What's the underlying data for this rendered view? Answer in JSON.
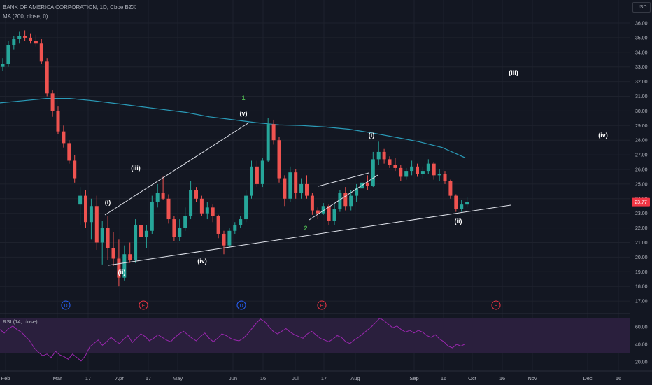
{
  "header": {
    "symbol": "BANK OF AMERICA CORPORATION, 1D, Cboe BZX",
    "indicator": "MA (200, close, 0)",
    "currency": "USD"
  },
  "rsi": {
    "legend": "RSI (14, close)",
    "ticks": [
      "60.00",
      "40.00",
      "20.00"
    ],
    "current": 40.5,
    "values": [
      57,
      53,
      58,
      61,
      57,
      54,
      49,
      44,
      36,
      31,
      27,
      29,
      25,
      32,
      28,
      26,
      23,
      29,
      25,
      21,
      27,
      37,
      41,
      45,
      39,
      43,
      48,
      44,
      41,
      46,
      50,
      42,
      47,
      52,
      49,
      44,
      47,
      51,
      48,
      45,
      43,
      48,
      52,
      55,
      51,
      47,
      44,
      49,
      53,
      47,
      43,
      47,
      52,
      50,
      47,
      45,
      44,
      47,
      52,
      58,
      64,
      69,
      66,
      60,
      55,
      52,
      55,
      58,
      54,
      51,
      49,
      47,
      52,
      55,
      51,
      47,
      45,
      43,
      46,
      50,
      48,
      43,
      41,
      45,
      48,
      52,
      56,
      60,
      65,
      70,
      67,
      63,
      59,
      61,
      57,
      54,
      56,
      53,
      56,
      54,
      50,
      48,
      51,
      46,
      43,
      38,
      36,
      40,
      38,
      40.5
    ]
  },
  "chart_data": {
    "type": "candlestick",
    "title": "BANK OF AMERICA CORPORATION, 1D, Cboe BZX",
    "ylim": [
      16.5,
      36.5
    ],
    "y_ticks": [
      "36.00",
      "35.00",
      "34.00",
      "33.00",
      "32.00",
      "31.00",
      "30.00",
      "29.00",
      "28.00",
      "27.00",
      "26.00",
      "25.00",
      "24.00",
      "23.00",
      "22.00",
      "21.00",
      "20.00",
      "19.00",
      "18.00",
      "17.00"
    ],
    "x_ticks": [
      "Feb",
      "Mar",
      "17",
      "Apr",
      "17",
      "May",
      "Jun",
      "16",
      "Jul",
      "17",
      "Aug",
      "Sep",
      "16",
      "Oct",
      "16",
      "Nov",
      "Dec",
      "16"
    ],
    "last_price": "23.77",
    "ma200_series": [
      30.55,
      30.7,
      30.85,
      30.85,
      30.7,
      30.5,
      30.3,
      30.1,
      29.9,
      29.6,
      29.4,
      29.2,
      29.05,
      29.0,
      28.9,
      28.75,
      28.5,
      28.2,
      27.9,
      27.5,
      26.8
    ],
    "ohlc": [
      [
        33.0,
        33.6,
        32.7,
        33.2
      ],
      [
        33.2,
        34.8,
        33.0,
        34.5
      ],
      [
        34.5,
        35.1,
        34.2,
        34.9
      ],
      [
        34.9,
        35.4,
        34.6,
        35.1
      ],
      [
        35.1,
        35.5,
        34.8,
        35.0
      ],
      [
        35.0,
        35.3,
        34.6,
        34.8
      ],
      [
        34.8,
        35.2,
        34.4,
        34.6
      ],
      [
        34.6,
        34.9,
        33.2,
        33.4
      ],
      [
        33.4,
        33.6,
        31.0,
        31.2
      ],
      [
        31.2,
        31.4,
        29.6,
        30.0
      ],
      [
        30.0,
        30.3,
        28.4,
        28.6
      ],
      [
        28.6,
        29.0,
        27.5,
        27.8
      ],
      [
        27.8,
        28.0,
        26.4,
        26.6
      ],
      [
        26.6,
        27.0,
        25.1,
        25.4
      ],
      [
        23.6,
        24.8,
        22.2,
        24.2
      ],
      [
        24.2,
        24.6,
        22.0,
        22.4
      ],
      [
        22.4,
        24.0,
        21.2,
        23.5
      ],
      [
        23.5,
        24.2,
        20.5,
        21.0
      ],
      [
        21.0,
        22.5,
        19.5,
        22.0
      ],
      [
        22.0,
        22.8,
        19.8,
        20.6
      ],
      [
        20.6,
        21.7,
        19.4,
        19.9
      ],
      [
        19.9,
        21.2,
        18.0,
        18.6
      ],
      [
        18.6,
        20.8,
        18.4,
        20.2
      ],
      [
        20.2,
        21.0,
        19.6,
        19.8
      ],
      [
        19.8,
        22.6,
        19.6,
        22.2
      ],
      [
        22.2,
        23.0,
        21.0,
        21.4
      ],
      [
        21.4,
        22.2,
        20.6,
        21.8
      ],
      [
        21.8,
        24.2,
        21.6,
        23.8
      ],
      [
        23.8,
        25.0,
        23.4,
        24.4
      ],
      [
        24.4,
        25.5,
        23.9,
        24.0
      ],
      [
        24.0,
        24.3,
        22.3,
        22.6
      ],
      [
        22.6,
        22.8,
        21.1,
        21.4
      ],
      [
        21.4,
        22.6,
        21.1,
        22.0
      ],
      [
        22.0,
        23.4,
        21.8,
        22.8
      ],
      [
        22.8,
        25.2,
        22.6,
        24.6
      ],
      [
        24.6,
        24.8,
        23.8,
        24.0
      ],
      [
        24.0,
        24.2,
        22.8,
        23.0
      ],
      [
        23.0,
        23.8,
        22.6,
        23.4
      ],
      [
        23.4,
        23.6,
        22.4,
        22.8
      ],
      [
        22.8,
        22.9,
        21.3,
        21.6
      ],
      [
        21.6,
        21.8,
        20.2,
        20.8
      ],
      [
        20.8,
        22.0,
        20.6,
        21.8
      ],
      [
        21.8,
        22.4,
        21.6,
        22.2
      ],
      [
        22.2,
        22.8,
        22.0,
        22.6
      ],
      [
        22.6,
        24.6,
        22.4,
        24.2
      ],
      [
        24.2,
        26.6,
        24.0,
        26.2
      ],
      [
        26.2,
        26.6,
        24.8,
        25.0
      ],
      [
        25.0,
        26.8,
        24.8,
        26.6
      ],
      [
        26.6,
        29.5,
        26.5,
        29.1
      ],
      [
        29.1,
        29.4,
        27.7,
        28.0
      ],
      [
        28.0,
        28.2,
        25.1,
        25.4
      ],
      [
        25.4,
        25.6,
        23.5,
        24.0
      ],
      [
        24.0,
        26.2,
        23.8,
        25.8
      ],
      [
        25.8,
        26.0,
        24.0,
        24.4
      ],
      [
        24.4,
        25.4,
        24.0,
        25.0
      ],
      [
        25.0,
        25.6,
        24.0,
        24.2
      ],
      [
        24.2,
        24.4,
        22.9,
        23.2
      ],
      [
        23.2,
        23.4,
        22.6,
        23.0
      ],
      [
        23.0,
        23.7,
        22.9,
        23.5
      ],
      [
        23.5,
        23.6,
        22.2,
        22.5
      ],
      [
        22.5,
        23.6,
        22.2,
        23.3
      ],
      [
        23.3,
        24.6,
        23.1,
        24.4
      ],
      [
        24.4,
        24.8,
        23.2,
        23.5
      ],
      [
        23.5,
        24.6,
        23.2,
        24.2
      ],
      [
        24.2,
        25.0,
        23.8,
        24.7
      ],
      [
        24.7,
        25.4,
        24.4,
        25.1
      ],
      [
        25.1,
        25.6,
        24.6,
        24.9
      ],
      [
        24.9,
        27.2,
        24.8,
        26.7
      ],
      [
        26.7,
        27.9,
        26.3,
        27.2
      ],
      [
        27.2,
        27.4,
        26.4,
        26.7
      ],
      [
        26.7,
        26.9,
        26.1,
        26.3
      ],
      [
        26.3,
        26.8,
        25.9,
        26.1
      ],
      [
        26.1,
        26.3,
        25.2,
        25.5
      ],
      [
        25.5,
        26.1,
        25.3,
        25.9
      ],
      [
        25.9,
        26.6,
        25.6,
        26.2
      ],
      [
        26.2,
        26.4,
        25.5,
        25.7
      ],
      [
        25.7,
        26.2,
        25.4,
        25.9
      ],
      [
        25.9,
        26.7,
        25.7,
        26.4
      ],
      [
        26.4,
        26.5,
        25.3,
        25.6
      ],
      [
        25.6,
        26.0,
        25.2,
        25.7
      ],
      [
        25.7,
        25.9,
        25.0,
        25.2
      ],
      [
        25.2,
        25.3,
        24.0,
        24.2
      ],
      [
        24.2,
        24.3,
        23.1,
        23.3
      ],
      [
        23.3,
        23.9,
        23.1,
        23.6
      ],
      [
        23.6,
        24.1,
        23.4,
        23.77
      ]
    ],
    "wave_labels": [
      {
        "text": "(i)",
        "color": "white"
      },
      {
        "text": "(ii)",
        "color": "white"
      },
      {
        "text": "(iii)",
        "color": "white"
      },
      {
        "text": "(iv)",
        "color": "white"
      },
      {
        "text": "(v)",
        "color": "white"
      },
      {
        "text": "1",
        "color": "green"
      },
      {
        "text": "2",
        "color": "green"
      },
      {
        "text": "(i)",
        "color": "white"
      },
      {
        "text": "(ii)",
        "color": "white"
      },
      {
        "text": "(iii)",
        "color": "white"
      },
      {
        "text": "(iv)",
        "color": "white"
      }
    ],
    "event_markers": [
      {
        "text": "D",
        "kind": "dividend"
      },
      {
        "text": "E",
        "kind": "earnings"
      },
      {
        "text": "D",
        "kind": "dividend"
      },
      {
        "text": "E",
        "kind": "earnings"
      },
      {
        "text": "E",
        "kind": "earnings"
      }
    ]
  },
  "colors": {
    "background": "#131722",
    "grid": "#1e222d",
    "up": "#26a69a",
    "down": "#ef5350",
    "ma": "#2a9bb8",
    "trendline": "#e0e3eb",
    "price_line": "#f23645",
    "rsi_line": "#9c27b0",
    "rsi_band": "#2a1f3d",
    "wave_green": "#4caf50",
    "dividend": "#2962ff",
    "earnings": "#f23645"
  }
}
